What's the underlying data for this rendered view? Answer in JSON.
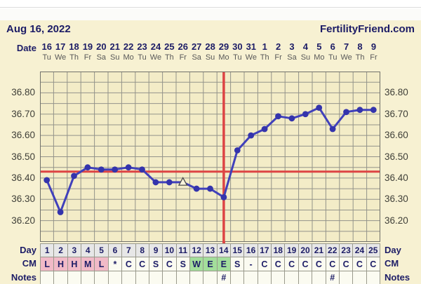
{
  "header": {
    "date_title": "Aug 16, 2022",
    "brand": "FertilityFriend.com"
  },
  "labels": {
    "date": "Date",
    "day": "Day",
    "cm": "CM",
    "notes": "Notes"
  },
  "chart_data": {
    "type": "line",
    "x_dates": [
      "16",
      "17",
      "18",
      "19",
      "20",
      "21",
      "22",
      "23",
      "24",
      "25",
      "26",
      "27",
      "28",
      "29",
      "30",
      "31",
      "1",
      "2",
      "3",
      "4",
      "5",
      "6",
      "7",
      "8",
      "9"
    ],
    "weekdays": [
      "Tu",
      "We",
      "Th",
      "Fr",
      "Sa",
      "Su",
      "Mo",
      "Tu",
      "We",
      "Th",
      "Fr",
      "Sa",
      "Su",
      "Mo",
      "Tu",
      "We",
      "Th",
      "Fr",
      "Sa",
      "Su",
      "Mo",
      "Tu",
      "We",
      "Th",
      "Fr"
    ],
    "cycle_days": [
      1,
      2,
      3,
      4,
      5,
      6,
      7,
      8,
      9,
      10,
      11,
      12,
      13,
      14,
      15,
      16,
      17,
      18,
      19,
      20,
      21,
      22,
      23,
      24,
      25
    ],
    "series": [
      {
        "name": "basal-body-temperature",
        "values": [
          36.39,
          36.24,
          36.41,
          36.45,
          36.44,
          36.44,
          36.45,
          36.44,
          36.38,
          36.38,
          36.38,
          36.35,
          36.35,
          36.31,
          36.53,
          36.6,
          36.63,
          36.69,
          36.68,
          36.7,
          36.73,
          36.63,
          36.71,
          36.72,
          36.72
        ]
      }
    ],
    "discarded_point_days": [
      11
    ],
    "coverline_value": 36.43,
    "ovulation_line_day": 14,
    "ylim": [
      36.1,
      36.9
    ],
    "y_tick_labels": [
      "36.80",
      "36.70",
      "36.60",
      "36.50",
      "36.40",
      "36.30",
      "36.20"
    ],
    "y_tick_values": [
      36.8,
      36.7,
      36.6,
      36.5,
      36.4,
      36.3,
      36.2
    ],
    "grid": true,
    "grid_step": 0.05
  },
  "table": {
    "day_values": [
      "1",
      "2",
      "3",
      "4",
      "5",
      "6",
      "7",
      "8",
      "9",
      "10",
      "11",
      "12",
      "13",
      "14",
      "15",
      "16",
      "17",
      "18",
      "19",
      "20",
      "21",
      "22",
      "23",
      "24",
      "25"
    ],
    "cm_values": [
      "L",
      "H",
      "H",
      "M",
      "L",
      "*",
      "C",
      "C",
      "S",
      "C",
      "S",
      "W",
      "E",
      "E",
      "S",
      "-",
      "C",
      "C",
      "C",
      "C",
      "C",
      "C",
      "C",
      "C",
      "C"
    ],
    "cm_highlight": [
      "menses",
      "menses",
      "menses",
      "menses",
      "menses",
      "",
      "",
      "",
      "",
      "",
      "",
      "fertile",
      "fertile",
      "fertile",
      "",
      "",
      "",
      "",
      "",
      "",
      "",
      "",
      "",
      "",
      ""
    ],
    "notes_values": [
      "",
      "",
      "",
      "",
      "",
      "",
      "",
      "",
      "",
      "",
      "",
      "",
      "",
      "#",
      "",
      "",
      "",
      "",
      "",
      "",
      "",
      "#",
      "",
      "",
      ""
    ]
  },
  "colors": {
    "navy_text": "#1c1c66",
    "cream_bg": "#f7f1d2",
    "plot_bg": "#f3ecc7",
    "grid_line": "#93938a",
    "plot_border": "#71716a",
    "red_line": "#dd4444",
    "temp_line": "#4040bb",
    "temp_point": "#3434ac",
    "menses_pink": "#f1bac7",
    "fertile_green": "#a3de9b"
  }
}
